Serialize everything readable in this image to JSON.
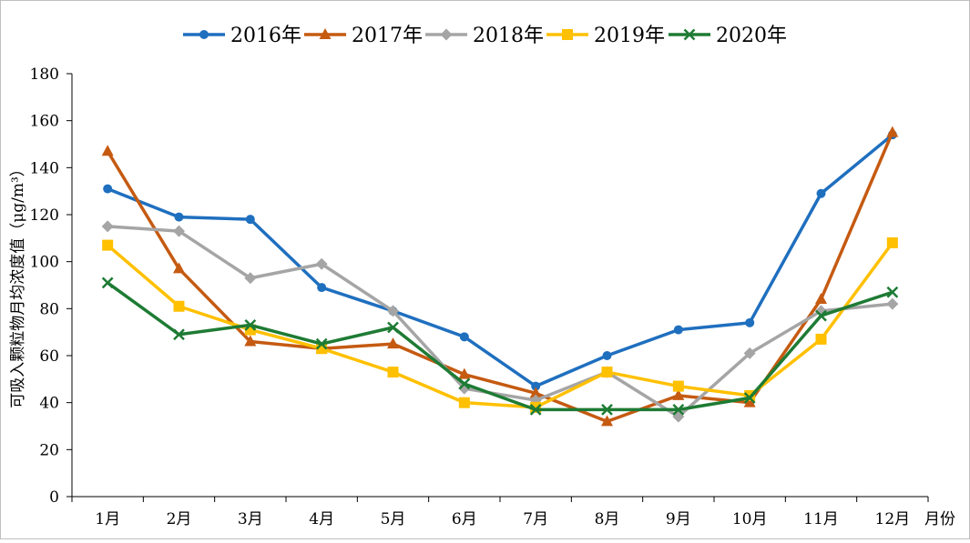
{
  "chart_data": {
    "type": "line",
    "categories": [
      "1月",
      "2月",
      "3月",
      "4月",
      "5月",
      "6月",
      "7月",
      "8月",
      "9月",
      "10月",
      "11月",
      "12月"
    ],
    "xlabel": "月份",
    "ylabel": "可吸入颗粒物月均浓度值（μg/m³）",
    "ylim": [
      0,
      180
    ],
    "yticks": [
      0,
      20,
      40,
      60,
      80,
      100,
      120,
      140,
      160,
      180
    ],
    "grid": false,
    "legend_position": "top-center",
    "series": [
      {
        "name": "2016年",
        "color": "#1f6fbf",
        "marker": "circle",
        "values": [
          131,
          119,
          118,
          89,
          79,
          68,
          47,
          60,
          71,
          74,
          129,
          154
        ]
      },
      {
        "name": "2017年",
        "color": "#c55a11",
        "marker": "triangle",
        "values": [
          147,
          97,
          66,
          63,
          65,
          52,
          44,
          32,
          43,
          40,
          84,
          155
        ]
      },
      {
        "name": "2018年",
        "color": "#a5a5a5",
        "marker": "diamond",
        "values": [
          115,
          113,
          93,
          99,
          79,
          46,
          41,
          53,
          34,
          61,
          79,
          82
        ]
      },
      {
        "name": "2019年",
        "color": "#ffc000",
        "marker": "square",
        "values": [
          107,
          81,
          71,
          63,
          53,
          40,
          38,
          53,
          47,
          43,
          67,
          108
        ]
      },
      {
        "name": "2020年",
        "color": "#1e7b34",
        "marker": "x",
        "values": [
          91,
          69,
          73,
          65,
          72,
          48,
          37,
          37,
          37,
          42,
          77,
          87
        ]
      }
    ]
  }
}
